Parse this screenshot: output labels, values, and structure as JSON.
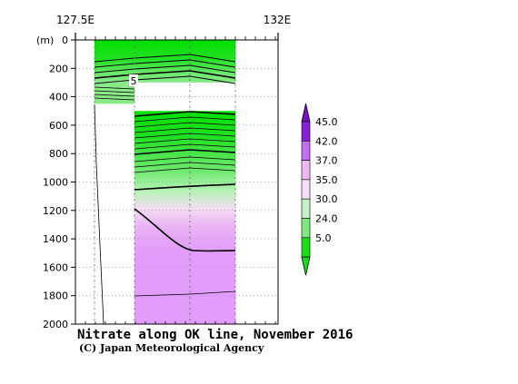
{
  "chart_data": {
    "type": "heatmap",
    "title": "Nitrate along OK line, November 2016",
    "credit": "(C) Japan Meteorological Agency",
    "ylabel": "(m)",
    "ylim": [
      0,
      2000
    ],
    "y_ticks": [
      "0",
      "200",
      "400",
      "600",
      "800",
      "1000",
      "1200",
      "1400",
      "1600",
      "1800",
      "2000"
    ],
    "x_tick_labels": [
      "127.5E",
      "132E"
    ],
    "contour_label": "5",
    "grid": true,
    "legend": {
      "placement": "right",
      "labels": [
        "45.0",
        "42.0",
        "37.0",
        "35.0",
        "30.0",
        "24.0",
        "5.0"
      ],
      "colors": [
        "#8a1fd6",
        "#c56ff0",
        "#eeb8f2",
        "#f6e2f6",
        "#c8f0c8",
        "#7fe87f",
        "#19dd19"
      ]
    },
    "colors": {
      "green": "#00e200",
      "violet": "#e29cfa",
      "contour": "#000000"
    }
  }
}
